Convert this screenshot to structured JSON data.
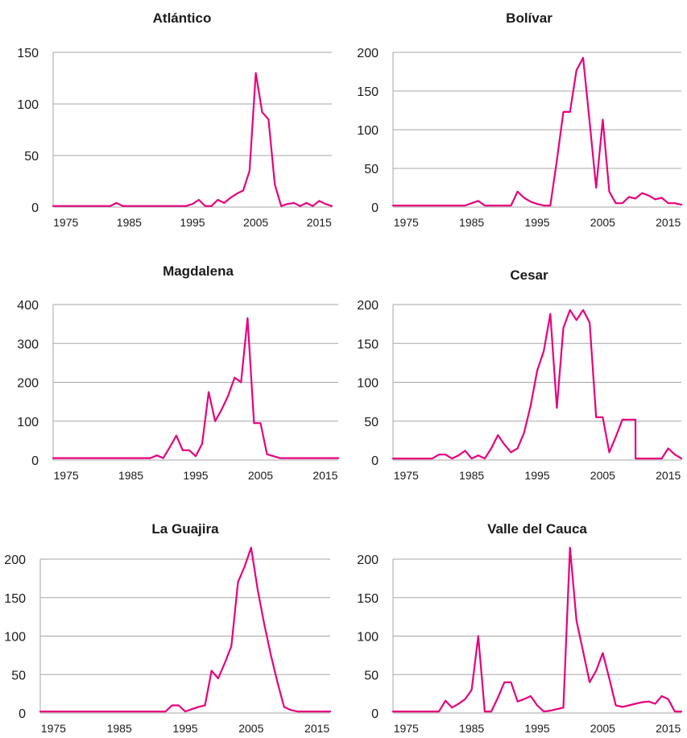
{
  "chart_data": [
    {
      "type": "line",
      "title": "Atlántico",
      "ylim": [
        0,
        150
      ],
      "yticks": [
        0,
        50,
        100,
        150
      ],
      "xticks": [
        1975,
        1985,
        1995,
        2005,
        2015
      ],
      "xlim": [
        1973,
        2017
      ],
      "color": "#e6007e",
      "x": [
        1973,
        1974,
        1975,
        1976,
        1977,
        1978,
        1979,
        1980,
        1981,
        1982,
        1983,
        1984,
        1985,
        1986,
        1987,
        1988,
        1989,
        1990,
        1991,
        1992,
        1993,
        1994,
        1995,
        1996,
        1997,
        1998,
        1999,
        2000,
        2001,
        2002,
        2003,
        2004,
        2005,
        2006,
        2007,
        2008,
        2009,
        2010,
        2011,
        2012,
        2013,
        2014,
        2015,
        2016,
        2017
      ],
      "values": [
        1,
        1,
        1,
        1,
        1,
        1,
        1,
        1,
        1,
        1,
        4,
        1,
        1,
        1,
        1,
        1,
        1,
        1,
        1,
        1,
        1,
        1,
        3,
        7,
        1,
        1,
        7,
        4,
        9,
        13,
        16,
        35,
        130,
        92,
        85,
        22,
        1,
        3,
        4,
        1,
        4,
        1,
        6,
        3,
        1
      ]
    },
    {
      "type": "line",
      "title": "Bolívar",
      "ylim": [
        0,
        200
      ],
      "yticks": [
        0,
        50,
        100,
        150,
        200
      ],
      "xticks": [
        1975,
        1985,
        1995,
        2005,
        2015
      ],
      "xlim": [
        1973,
        2017
      ],
      "color": "#e6007e",
      "x": [
        1973,
        1974,
        1975,
        1976,
        1977,
        1978,
        1979,
        1980,
        1981,
        1982,
        1983,
        1984,
        1985,
        1986,
        1987,
        1988,
        1989,
        1990,
        1991,
        1992,
        1993,
        1994,
        1995,
        1996,
        1997,
        1998,
        1999,
        2000,
        2001,
        2002,
        2003,
        2004,
        2005,
        2006,
        2007,
        2008,
        2009,
        2010,
        2011,
        2012,
        2013,
        2014,
        2015,
        2016,
        2017
      ],
      "values": [
        2,
        2,
        2,
        2,
        2,
        2,
        2,
        2,
        2,
        2,
        2,
        2,
        5,
        8,
        2,
        2,
        2,
        2,
        2,
        20,
        12,
        7,
        4,
        2,
        2,
        60,
        123,
        123,
        177,
        193,
        110,
        25,
        113,
        20,
        5,
        5,
        13,
        11,
        18,
        15,
        10,
        12,
        5,
        5,
        3
      ]
    },
    {
      "type": "line",
      "title": "Magdalena",
      "ylim": [
        0,
        400
      ],
      "yticks": [
        0,
        100,
        200,
        300,
        400
      ],
      "xticks": [
        1975,
        1985,
        1995,
        2005,
        2015
      ],
      "xlim": [
        1973,
        2017
      ],
      "color": "#e6007e",
      "x": [
        1973,
        1974,
        1975,
        1976,
        1977,
        1978,
        1979,
        1980,
        1981,
        1982,
        1983,
        1984,
        1985,
        1986,
        1987,
        1988,
        1989,
        1990,
        1991,
        1992,
        1993,
        1994,
        1995,
        1996,
        1997,
        1998,
        1999,
        2000,
        2001,
        2002,
        2003,
        2004,
        2005,
        2006,
        2007,
        2008,
        2009,
        2010,
        2011,
        2012,
        2013,
        2014,
        2015,
        2016,
        2017
      ],
      "values": [
        5,
        5,
        5,
        5,
        5,
        5,
        5,
        5,
        5,
        5,
        5,
        5,
        5,
        5,
        5,
        5,
        12,
        5,
        33,
        63,
        25,
        25,
        10,
        42,
        175,
        100,
        130,
        165,
        212,
        200,
        365,
        95,
        95,
        15,
        10,
        5,
        5,
        5,
        5,
        5,
        5,
        5,
        5,
        5,
        5
      ]
    },
    {
      "type": "line",
      "title": "Cesar",
      "ylim": [
        0,
        200
      ],
      "yticks": [
        0,
        50,
        100,
        150,
        200
      ],
      "xticks": [
        1975,
        1985,
        1995,
        2005,
        2015
      ],
      "xlim": [
        1973,
        2017
      ],
      "color": "#e6007e",
      "x": [
        1973,
        1974,
        1975,
        1976,
        1977,
        1978,
        1979,
        1980,
        1981,
        1982,
        1983,
        1984,
        1985,
        1986,
        1987,
        1988,
        1989,
        1990,
        1991,
        1992,
        1993,
        1994,
        1995,
        1996,
        1997,
        1998,
        1999,
        2000,
        2001,
        2002,
        2003,
        2004,
        2005,
        2006,
        2007,
        2008,
        2009,
        2010,
        2010.01,
        2011,
        2012,
        2013,
        2014,
        2015,
        2016,
        2017
      ],
      "values": [
        2,
        2,
        2,
        2,
        2,
        2,
        2,
        7,
        7,
        2,
        6,
        12,
        2,
        6,
        2,
        15,
        32,
        20,
        10,
        15,
        35,
        70,
        115,
        140,
        188,
        67,
        170,
        193,
        180,
        193,
        177,
        55,
        55,
        10,
        30,
        52,
        52,
        52,
        2,
        2,
        2,
        2,
        2,
        15,
        7,
        2
      ]
    },
    {
      "type": "line",
      "title": "La Guajira",
      "ylim": [
        0,
        200
      ],
      "yticks": [
        0,
        50,
        100,
        150,
        200
      ],
      "xticks": [
        1975,
        1985,
        1995,
        2005,
        2015
      ],
      "xlim": [
        1973,
        2017
      ],
      "color": "#e6007e",
      "x": [
        1973,
        1974,
        1975,
        1976,
        1977,
        1978,
        1979,
        1980,
        1981,
        1982,
        1983,
        1984,
        1985,
        1986,
        1987,
        1988,
        1989,
        1990,
        1991,
        1992,
        1993,
        1994,
        1995,
        1996,
        1997,
        1998,
        1999,
        2000,
        2001,
        2002,
        2003,
        2004,
        2005,
        2006,
        2007,
        2008,
        2009,
        2010,
        2011,
        2012,
        2013,
        2014,
        2015,
        2016,
        2017
      ],
      "values": [
        2,
        2,
        2,
        2,
        2,
        2,
        2,
        2,
        2,
        2,
        2,
        2,
        2,
        2,
        2,
        2,
        2,
        2,
        2,
        2,
        10,
        10,
        2,
        5,
        8,
        10,
        55,
        45,
        65,
        87,
        170,
        190,
        215,
        160,
        115,
        75,
        40,
        8,
        4,
        2,
        2,
        2,
        2,
        2,
        2
      ]
    },
    {
      "type": "line",
      "title": "Valle del Cauca",
      "ylim": [
        0,
        200
      ],
      "yticks": [
        0,
        50,
        100,
        150,
        200
      ],
      "xticks": [
        1975,
        1985,
        1995,
        2005,
        2015
      ],
      "xlim": [
        1973,
        2017
      ],
      "color": "#e6007e",
      "x": [
        1973,
        1974,
        1975,
        1976,
        1977,
        1978,
        1979,
        1980,
        1981,
        1982,
        1983,
        1984,
        1985,
        1986,
        1987,
        1988,
        1989,
        1990,
        1991,
        1992,
        1993,
        1994,
        1995,
        1996,
        1997,
        1998,
        1999,
        2000,
        2001,
        2002,
        2003,
        2004,
        2005,
        2006,
        2007,
        2008,
        2009,
        2010,
        2011,
        2012,
        2013,
        2014,
        2015,
        2016,
        2017
      ],
      "values": [
        2,
        2,
        2,
        2,
        2,
        2,
        2,
        2,
        16,
        7,
        12,
        18,
        30,
        100,
        2,
        2,
        20,
        40,
        40,
        15,
        18,
        22,
        10,
        2,
        3,
        5,
        7,
        215,
        120,
        80,
        40,
        55,
        78,
        45,
        10,
        8,
        10,
        12,
        14,
        15,
        12,
        22,
        18,
        2,
        2
      ]
    }
  ]
}
